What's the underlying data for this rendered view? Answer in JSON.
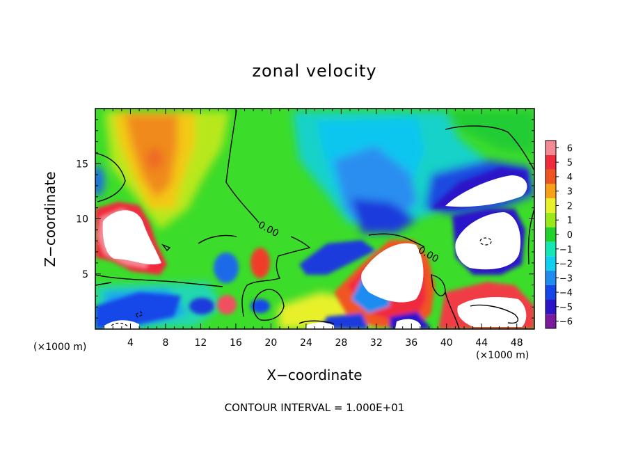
{
  "chart_data": {
    "type": "heatmap",
    "title": "zonal velocity",
    "xlabel": "X−coordinate",
    "ylabel": "Z−coordinate",
    "x_unit_note": "(×1000 m)",
    "contour_interval_text": "CONTOUR INTERVAL = 1.000E+01",
    "contour_label": "0.00",
    "xlim": [
      0,
      50
    ],
    "ylim": [
      0,
      20
    ],
    "x_ticks": [
      4,
      8,
      12,
      16,
      20,
      24,
      28,
      32,
      36,
      40,
      44,
      48
    ],
    "y_ticks": [
      5,
      10,
      15
    ],
    "colorbar": {
      "levels": [
        -6,
        -5,
        -4,
        -3,
        -2,
        -1,
        0,
        1,
        2,
        3,
        4,
        5,
        6
      ],
      "colors": [
        "#7a1a9c",
        "#2a16c8",
        "#1446e8",
        "#1e8cf0",
        "#10d0f0",
        "#16e6b4",
        "#22d22a",
        "#9ae81c",
        "#e8f02a",
        "#f7a018",
        "#f05420",
        "#f02c3c",
        "#f48a94"
      ]
    },
    "features": [
      {
        "kind": "positive_max",
        "x": 4,
        "z": 9,
        "value": 7
      },
      {
        "kind": "positive_max",
        "x": 34,
        "z": 6,
        "value": 7
      },
      {
        "kind": "negative_min",
        "x": 44,
        "z": 8,
        "value": -7
      },
      {
        "kind": "negative_min",
        "x": 43,
        "z": 13,
        "value": -7
      },
      {
        "kind": "positive_region",
        "x": 7,
        "z": 15,
        "value": 3.5
      },
      {
        "kind": "negative_region",
        "x": 29,
        "z": 12,
        "value": -3.5
      }
    ]
  },
  "colors": {
    "frame": "#000000",
    "background": "#ffffff"
  }
}
